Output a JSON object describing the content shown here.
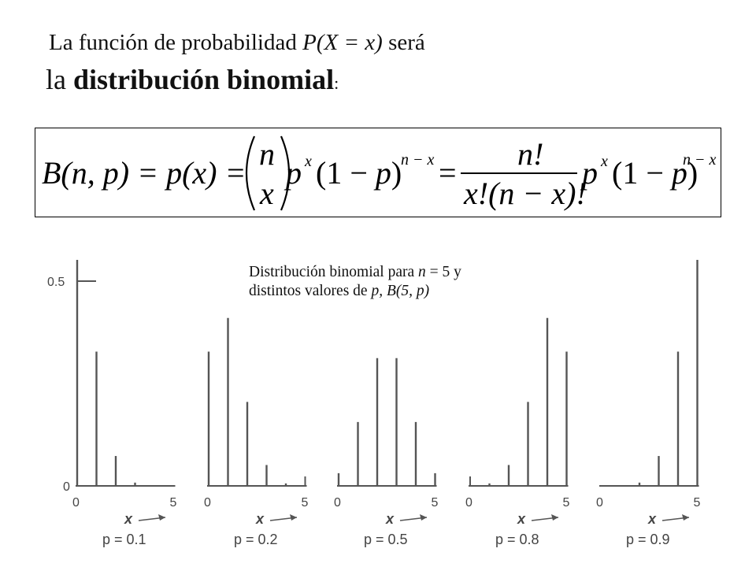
{
  "heading": {
    "line1_prefix": "La función de probabilidad ",
    "line1_expr": "P(X = x)",
    "line1_suffix": " será",
    "line2_prefix": "la ",
    "line2_bold": "distribución binomial",
    "line2_suffix": ":"
  },
  "formula": {
    "lhs": "B(n, p) = p(x) =",
    "binom_top": "n",
    "binom_bottom": "x",
    "term": "p^x (1 − p)^(n−x)",
    "equals": "=",
    "frac_num": "n!",
    "frac_den": "x!(n − x)!"
  },
  "caption": {
    "line1_prefix": "Distribución binomial para ",
    "line1_var": "n",
    "line1_suffix": " = 5 y",
    "line2_prefix": "distintos valores de ",
    "line2_var": "p, B(5, p)"
  },
  "chart_data": [
    {
      "type": "bar",
      "x": [
        0,
        1,
        2,
        3,
        4,
        5
      ],
      "values": [
        0.59,
        0.328,
        0.073,
        0.008,
        0.0,
        0.0
      ],
      "xlabel": "x",
      "p_label": "p = 0.1",
      "y_ticks": [
        "0.5",
        "0"
      ],
      "x_ticks": [
        "0",
        "5"
      ],
      "ylim": [
        0,
        0.65
      ]
    },
    {
      "type": "bar",
      "x": [
        0,
        1,
        2,
        3,
        4,
        5
      ],
      "values": [
        0.328,
        0.41,
        0.205,
        0.051,
        0.006,
        0.0
      ],
      "xlabel": "x",
      "p_label": "p = 0.2",
      "x_ticks": [
        "0",
        "5"
      ],
      "ylim": [
        0,
        0.65
      ]
    },
    {
      "type": "bar",
      "x": [
        0,
        1,
        2,
        3,
        4,
        5
      ],
      "values": [
        0.031,
        0.156,
        0.312,
        0.312,
        0.156,
        0.031
      ],
      "xlabel": "x",
      "p_label": "p = 0.5",
      "x_ticks": [
        "0",
        "5"
      ],
      "ylim": [
        0,
        0.65
      ]
    },
    {
      "type": "bar",
      "x": [
        0,
        1,
        2,
        3,
        4,
        5
      ],
      "values": [
        0.0,
        0.006,
        0.051,
        0.205,
        0.41,
        0.328
      ],
      "xlabel": "x",
      "p_label": "p = 0.8",
      "x_ticks": [
        "0",
        "5"
      ],
      "ylim": [
        0,
        0.65
      ]
    },
    {
      "type": "bar",
      "x": [
        0,
        1,
        2,
        3,
        4,
        5
      ],
      "values": [
        0.0,
        0.0,
        0.008,
        0.073,
        0.328,
        0.59
      ],
      "xlabel": "x",
      "p_label": "p = 0.9",
      "x_ticks": [
        "0",
        "5"
      ],
      "ylim": [
        0,
        0.65
      ]
    }
  ]
}
